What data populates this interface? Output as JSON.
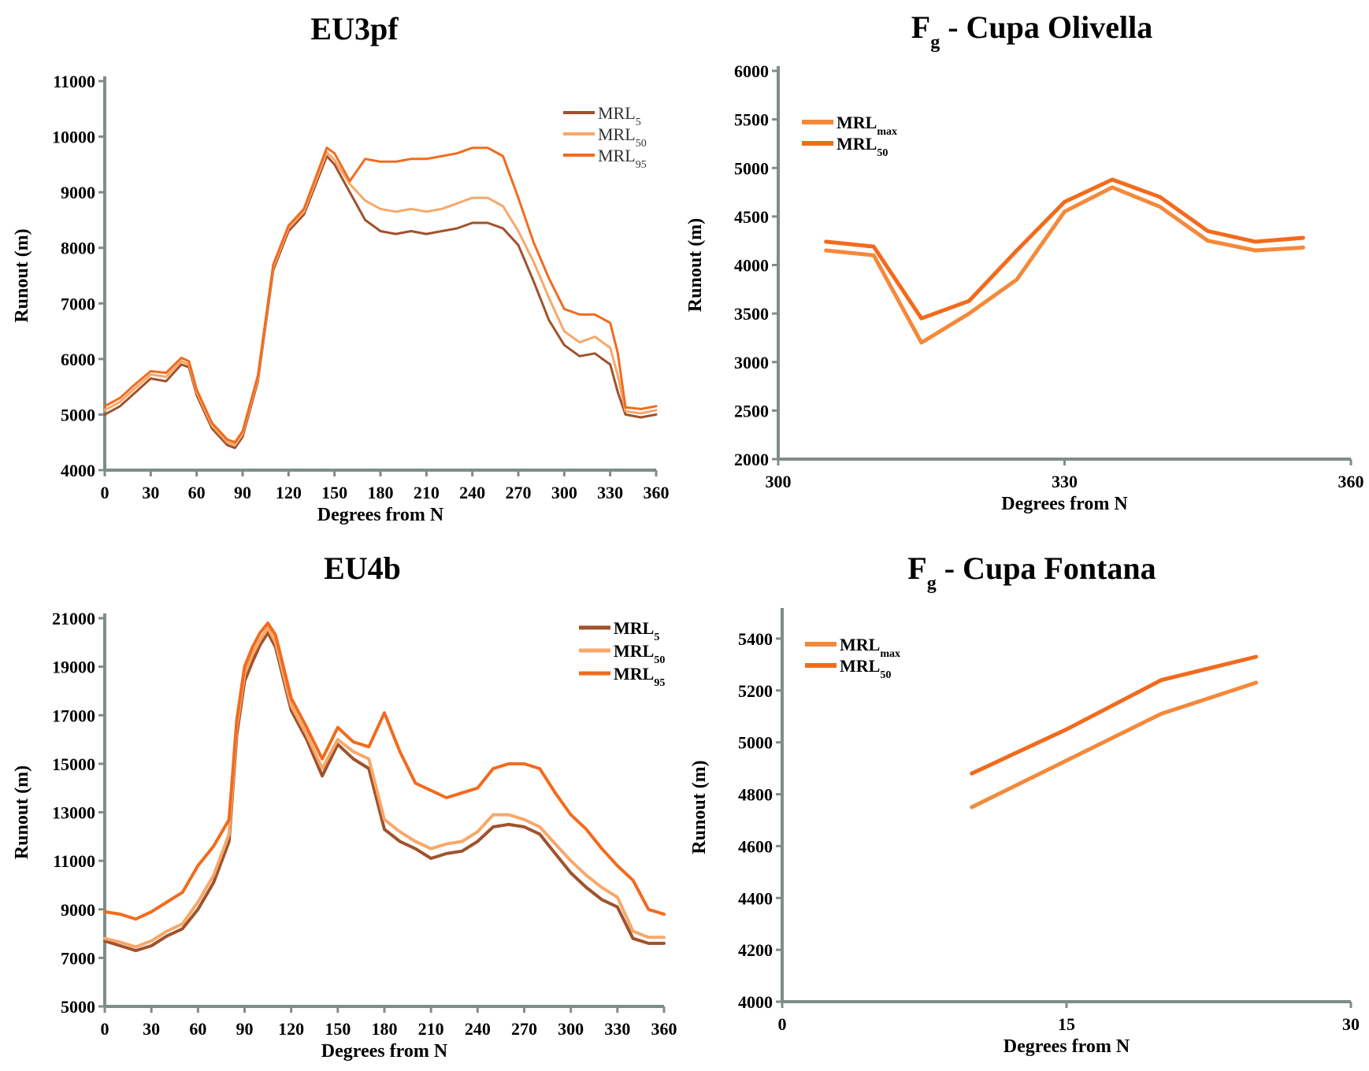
{
  "colors": {
    "axis": "#7f8c8a",
    "dark": "#a0522d",
    "light": "#f7a86a",
    "orange": "#f26b1d",
    "mid": "#f4893a"
  },
  "chart_data": [
    {
      "type": "line",
      "title": "EU3pf",
      "xlabel": "Degrees from N",
      "ylabel": "Runout (m)",
      "xlim": [
        0,
        360
      ],
      "ylim": [
        4000,
        11000
      ],
      "xticks": [
        "0",
        "30",
        "60",
        "90",
        "120",
        "150",
        "180",
        "210",
        "240",
        "270",
        "300",
        "330",
        "360"
      ],
      "yticks": [
        "4000",
        "5000",
        "6000",
        "7000",
        "8000",
        "9000",
        "10000",
        "11000"
      ],
      "legend": "top-right",
      "x": [
        0,
        10,
        20,
        30,
        40,
        50,
        55,
        60,
        70,
        80,
        85,
        90,
        100,
        110,
        120,
        130,
        145,
        150,
        160,
        170,
        180,
        190,
        200,
        210,
        220,
        230,
        240,
        250,
        260,
        270,
        280,
        290,
        300,
        310,
        320,
        330,
        335,
        340,
        350,
        360
      ],
      "series": [
        {
          "name": "MRL",
          "sub": "5",
          "color": "dark",
          "values": [
            5000,
            5150,
            5400,
            5650,
            5600,
            5900,
            5850,
            5350,
            4750,
            4450,
            4400,
            4600,
            5600,
            7600,
            8300,
            8600,
            9650,
            9500,
            9000,
            8500,
            8300,
            8250,
            8300,
            8250,
            8300,
            8350,
            8450,
            8450,
            8350,
            8050,
            7400,
            6700,
            6250,
            6050,
            6100,
            5900,
            5400,
            5000,
            4950,
            5000
          ]
        },
        {
          "name": "MRL",
          "sub": "50",
          "color": "light",
          "values": [
            5080,
            5230,
            5480,
            5720,
            5680,
            5960,
            5900,
            5400,
            4800,
            4500,
            4450,
            4650,
            5650,
            7650,
            8350,
            8650,
            9720,
            9580,
            9150,
            8850,
            8700,
            8650,
            8700,
            8650,
            8700,
            8800,
            8900,
            8900,
            8750,
            8300,
            7750,
            7100,
            6500,
            6300,
            6400,
            6200,
            5700,
            5060,
            5020,
            5080
          ]
        },
        {
          "name": "MRL",
          "sub": "95",
          "color": "orange",
          "values": [
            5150,
            5300,
            5550,
            5780,
            5750,
            6020,
            5960,
            5450,
            4850,
            4550,
            4500,
            4700,
            5700,
            7700,
            8400,
            8700,
            9800,
            9700,
            9200,
            9600,
            9550,
            9550,
            9600,
            9600,
            9650,
            9700,
            9800,
            9800,
            9650,
            8900,
            8100,
            7450,
            6900,
            6800,
            6800,
            6650,
            6100,
            5130,
            5100,
            5150
          ]
        }
      ]
    },
    {
      "type": "line",
      "title": "F",
      "title_sub": "g",
      "title_rest": " - Cupa Olivella",
      "xlabel": "Degrees from N",
      "ylabel": "Runout (m)",
      "xlim": [
        300,
        360
      ],
      "ylim": [
        2000,
        6000
      ],
      "xticks": [
        "300",
        "330",
        "360"
      ],
      "yticks": [
        "2000",
        "2500",
        "3000",
        "3500",
        "4000",
        "4500",
        "5000",
        "5500",
        "6000"
      ],
      "legend": "top-left",
      "x": [
        305,
        310,
        315,
        320,
        325,
        330,
        335,
        340,
        345,
        350,
        355
      ],
      "series": [
        {
          "name": "MRL",
          "sub": "max",
          "color": "mid",
          "values": [
            4150,
            4100,
            3200,
            3500,
            3850,
            4550,
            4800,
            4600,
            4250,
            4150,
            4180
          ]
        },
        {
          "name": "MRL",
          "sub": "50",
          "color": "orange",
          "values": [
            4240,
            4190,
            3450,
            3630,
            4150,
            4650,
            4880,
            4700,
            4350,
            4240,
            4280
          ]
        }
      ]
    },
    {
      "type": "line",
      "title": "EU4b",
      "xlabel": "Degrees from N",
      "ylabel": "Runout (m)",
      "xlim": [
        0,
        360
      ],
      "ylim": [
        5000,
        21000
      ],
      "xticks": [
        "0",
        "30",
        "60",
        "90",
        "120",
        "150",
        "180",
        "210",
        "240",
        "270",
        "300",
        "330",
        "360"
      ],
      "yticks": [
        "5000",
        "7000",
        "9000",
        "11000",
        "13000",
        "15000",
        "17000",
        "19000",
        "21000"
      ],
      "legend": "top-right",
      "x": [
        0,
        10,
        20,
        30,
        40,
        50,
        60,
        70,
        80,
        85,
        90,
        95,
        100,
        105,
        110,
        120,
        130,
        140,
        150,
        160,
        170,
        180,
        190,
        200,
        210,
        220,
        230,
        240,
        250,
        260,
        270,
        280,
        290,
        300,
        310,
        320,
        330,
        340,
        350,
        360
      ],
      "series": [
        {
          "name": "MRL",
          "sub": "5",
          "color": "dark",
          "values": [
            7700,
            7500,
            7300,
            7500,
            7900,
            8200,
            9000,
            10100,
            11800,
            16200,
            18400,
            19200,
            19900,
            20400,
            19800,
            17200,
            16000,
            14500,
            15800,
            15200,
            14800,
            12300,
            11800,
            11500,
            11100,
            11300,
            11400,
            11800,
            12400,
            12500,
            12400,
            12100,
            11300,
            10500,
            9900,
            9400,
            9100,
            7800,
            7600,
            7600
          ]
        },
        {
          "name": "MRL",
          "sub": "50",
          "color": "light",
          "values": [
            7800,
            7650,
            7450,
            7700,
            8100,
            8400,
            9300,
            10400,
            12100,
            16500,
            18700,
            19500,
            20100,
            20600,
            20000,
            17400,
            16200,
            14800,
            16000,
            15500,
            15200,
            12700,
            12200,
            11800,
            11500,
            11700,
            11800,
            12200,
            12900,
            12900,
            12700,
            12400,
            11700,
            11000,
            10400,
            9900,
            9500,
            8100,
            7850,
            7850
          ]
        },
        {
          "name": "MRL",
          "sub": "95",
          "color": "orange",
          "values": [
            8900,
            8800,
            8600,
            8900,
            9300,
            9700,
            10800,
            11600,
            12700,
            16800,
            19000,
            19800,
            20400,
            20800,
            20300,
            17700,
            16500,
            15200,
            16500,
            15900,
            15700,
            17100,
            15500,
            14200,
            13900,
            13600,
            13800,
            14000,
            14800,
            15000,
            15000,
            14800,
            13800,
            12900,
            12300,
            11500,
            10800,
            10200,
            9000,
            8800
          ]
        }
      ]
    },
    {
      "type": "line",
      "title": "F",
      "title_sub": "g",
      "title_rest": " - Cupa Fontana",
      "xlabel": "Degrees from N",
      "ylabel": "Runout (m)",
      "xlim": [
        0,
        30
      ],
      "ylim": [
        4000,
        5500
      ],
      "xticks": [
        "0",
        "15",
        "30"
      ],
      "yticks": [
        "4000",
        "4200",
        "4400",
        "4600",
        "4800",
        "5000",
        "5200",
        "5400"
      ],
      "legend": "top-left",
      "x": [
        10,
        15,
        20,
        25
      ],
      "series": [
        {
          "name": "MRL",
          "sub": "max",
          "color": "mid",
          "values": [
            4750,
            4930,
            5110,
            5230
          ]
        },
        {
          "name": "MRL",
          "sub": "50",
          "color": "orange",
          "values": [
            4880,
            5050,
            5240,
            5330
          ]
        }
      ]
    }
  ]
}
